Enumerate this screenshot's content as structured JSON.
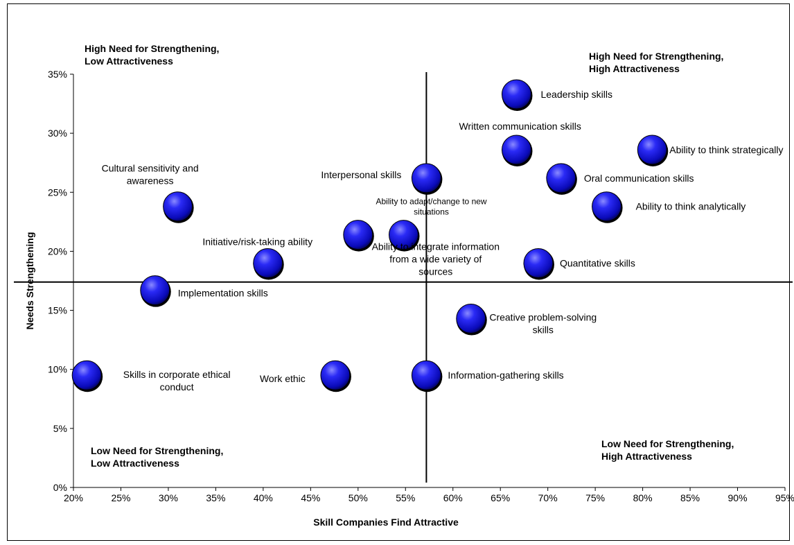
{
  "chart_data": {
    "type": "scatter",
    "xlabel": "Skill Companies Find Attractive",
    "ylabel": "Needs Strengthening",
    "xlim": [
      0.2,
      0.95
    ],
    "ylim": [
      0.0,
      0.35
    ],
    "x_ticks": [
      "20%",
      "25%",
      "30%",
      "35%",
      "40%",
      "45%",
      "50%",
      "55%",
      "60%",
      "65%",
      "70%",
      "75%",
      "80%",
      "85%",
      "90%",
      "95%"
    ],
    "y_ticks": [
      "0%",
      "5%",
      "10%",
      "15%",
      "20%",
      "25%",
      "30%",
      "35%"
    ],
    "x_tick_values": [
      0.2,
      0.25,
      0.3,
      0.35,
      0.4,
      0.45,
      0.5,
      0.55,
      0.6,
      0.65,
      0.7,
      0.75,
      0.8,
      0.85,
      0.9,
      0.95
    ],
    "y_tick_values": [
      0.0,
      0.05,
      0.1,
      0.15,
      0.2,
      0.25,
      0.3,
      0.35
    ],
    "grid": false,
    "reference_lines": {
      "x": 0.572,
      "y": 0.174
    },
    "marker_color": "#1414e0",
    "points": [
      {
        "label": "Leadership skills",
        "x": 0.667,
        "y": 0.333
      },
      {
        "label": "Written communication skills",
        "x": 0.667,
        "y": 0.286
      },
      {
        "label": "Ability to think strategically",
        "x": 0.81,
        "y": 0.286
      },
      {
        "label": "Oral communication skills",
        "x": 0.714,
        "y": 0.262
      },
      {
        "label": "Interpersonal skills",
        "x": 0.572,
        "y": 0.262
      },
      {
        "label": "Ability to think analytically",
        "x": 0.762,
        "y": 0.238
      },
      {
        "label": "Cultural sensitivity and awareness",
        "x": 0.31,
        "y": 0.238
      },
      {
        "label": "Ability to adapt/change to new situations",
        "x": 0.548,
        "y": 0.214
      },
      {
        "label": "Ability to integrate information from a wide variety of sources",
        "x": 0.5,
        "y": 0.214
      },
      {
        "label": "Initiative/risk-taking ability",
        "x": 0.405,
        "y": 0.19
      },
      {
        "label": "Quantitative skills",
        "x": 0.69,
        "y": 0.19
      },
      {
        "label": "Implementation skills",
        "x": 0.286,
        "y": 0.167
      },
      {
        "label": "Creative problem-solving skills",
        "x": 0.619,
        "y": 0.143
      },
      {
        "label": "Skills in corporate ethical conduct",
        "x": 0.214,
        "y": 0.095
      },
      {
        "label": "Work ethic",
        "x": 0.476,
        "y": 0.095
      },
      {
        "label": "Information-gathering skills",
        "x": 0.572,
        "y": 0.095
      }
    ],
    "quadrant_labels": [
      [
        "High Need for Strengthening,",
        "Low Attractiveness"
      ],
      [
        "High Need for Strengthening,",
        "High Attractiveness"
      ],
      [
        "Low Need for Strengthening,",
        "Low Attractiveness"
      ],
      [
        "Low Need for Strengthening,",
        "High Attractiveness"
      ]
    ]
  }
}
